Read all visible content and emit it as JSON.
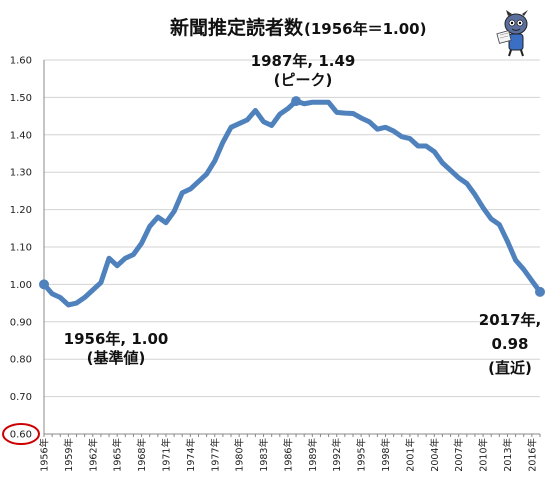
{
  "chart_data": {
    "type": "line",
    "title": "新聞推定読者数",
    "subtitle": "(1956年＝1.00)",
    "xlabel": "",
    "ylabel": "",
    "ylim": [
      0.6,
      1.6
    ],
    "yticks": [
      "0.60",
      "0.70",
      "0.80",
      "0.90",
      "1.00",
      "1.10",
      "1.20",
      "1.30",
      "1.40",
      "1.50",
      "1.60"
    ],
    "highlighted_ytick": "0.60",
    "grid": true,
    "legend": "none",
    "line_color": "#4f81bd",
    "highlight_color": "#cc0000",
    "x_tick_labels": [
      "1956年",
      "1959年",
      "1962年",
      "1965年",
      "1968年",
      "1971年",
      "1974年",
      "1977年",
      "1980年",
      "1983年",
      "1986年",
      "1989年",
      "1992年",
      "1995年",
      "1998年",
      "2001年",
      "2004年",
      "2007年",
      "2010年",
      "2013年",
      "2016年"
    ],
    "x": [
      1956,
      1957,
      1958,
      1959,
      1960,
      1961,
      1962,
      1963,
      1964,
      1965,
      1966,
      1967,
      1968,
      1969,
      1970,
      1971,
      1972,
      1973,
      1974,
      1975,
      1976,
      1977,
      1978,
      1979,
      1980,
      1981,
      1982,
      1983,
      1984,
      1985,
      1986,
      1987,
      1988,
      1989,
      1990,
      1991,
      1992,
      1993,
      1994,
      1995,
      1996,
      1997,
      1998,
      1999,
      2000,
      2001,
      2002,
      2003,
      2004,
      2005,
      2006,
      2007,
      2008,
      2009,
      2010,
      2011,
      2012,
      2013,
      2014,
      2015,
      2016,
      2017
    ],
    "series": [
      {
        "values": [
          1.0,
          0.975,
          0.965,
          0.945,
          0.95,
          0.965,
          0.985,
          1.005,
          1.07,
          1.05,
          1.07,
          1.08,
          1.11,
          1.155,
          1.18,
          1.165,
          1.195,
          1.245,
          1.255,
          1.275,
          1.295,
          1.33,
          1.38,
          1.42,
          1.43,
          1.44,
          1.465,
          1.435,
          1.425,
          1.455,
          1.47,
          1.49,
          1.483,
          1.487,
          1.487,
          1.487,
          1.46,
          1.458,
          1.457,
          1.445,
          1.435,
          1.415,
          1.42,
          1.41,
          1.395,
          1.39,
          1.37,
          1.37,
          1.355,
          1.325,
          1.305,
          1.285,
          1.27,
          1.24,
          1.205,
          1.175,
          1.16,
          1.115,
          1.065,
          1.04,
          1.01,
          0.98
        ]
      }
    ],
    "annotations": [
      {
        "lines": [
          "1987年, 1.49",
          "(ピーク)"
        ],
        "x": 1987,
        "y": 1.49
      },
      {
        "lines": [
          "1956年, 1.00",
          "(基準値)"
        ],
        "x": 1956,
        "y": 1.0
      },
      {
        "lines": [
          "2017年,",
          "0.98",
          "(直近)"
        ],
        "x": 2017,
        "y": 0.98
      }
    ],
    "markers": [
      {
        "x": 1956,
        "y": 1.0
      },
      {
        "x": 1987,
        "y": 1.49
      },
      {
        "x": 2017,
        "y": 0.98
      }
    ]
  }
}
